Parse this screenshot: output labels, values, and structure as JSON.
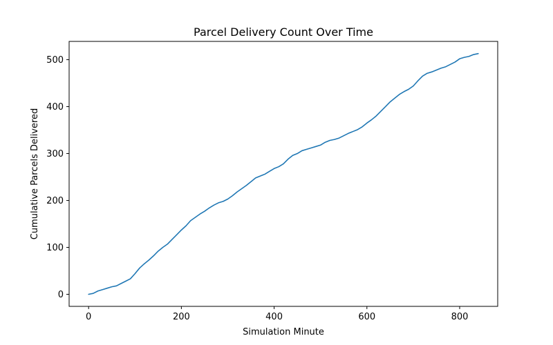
{
  "chart_data": {
    "type": "line",
    "title": "Parcel Delivery Count Over Time",
    "xlabel": "Simulation Minute",
    "ylabel": "Cumulative Parcels Delivered",
    "xlim": [
      -42,
      882
    ],
    "ylim": [
      -25.7,
      539
    ],
    "xticks": [
      0,
      200,
      400,
      600,
      800
    ],
    "yticks": [
      0,
      100,
      200,
      300,
      400,
      500
    ],
    "grid": false,
    "line_color": "#1f77b4",
    "series": [
      {
        "points": [
          [
            0,
            0
          ],
          [
            10,
            2
          ],
          [
            20,
            7
          ],
          [
            30,
            10
          ],
          [
            40,
            13
          ],
          [
            50,
            16
          ],
          [
            60,
            18
          ],
          [
            70,
            23
          ],
          [
            80,
            28
          ],
          [
            90,
            33
          ],
          [
            100,
            44
          ],
          [
            110,
            56
          ],
          [
            120,
            65
          ],
          [
            130,
            73
          ],
          [
            140,
            82
          ],
          [
            150,
            92
          ],
          [
            160,
            100
          ],
          [
            170,
            107
          ],
          [
            180,
            117
          ],
          [
            190,
            127
          ],
          [
            200,
            137
          ],
          [
            210,
            146
          ],
          [
            220,
            157
          ],
          [
            230,
            164
          ],
          [
            240,
            171
          ],
          [
            250,
            177
          ],
          [
            260,
            184
          ],
          [
            270,
            190
          ],
          [
            280,
            195
          ],
          [
            290,
            198
          ],
          [
            300,
            203
          ],
          [
            310,
            210
          ],
          [
            320,
            218
          ],
          [
            330,
            225
          ],
          [
            340,
            232
          ],
          [
            350,
            240
          ],
          [
            360,
            248
          ],
          [
            370,
            252
          ],
          [
            380,
            256
          ],
          [
            390,
            262
          ],
          [
            400,
            268
          ],
          [
            410,
            272
          ],
          [
            420,
            278
          ],
          [
            430,
            288
          ],
          [
            440,
            296
          ],
          [
            450,
            300
          ],
          [
            460,
            306
          ],
          [
            470,
            309
          ],
          [
            480,
            312
          ],
          [
            490,
            315
          ],
          [
            500,
            318
          ],
          [
            510,
            324
          ],
          [
            520,
            328
          ],
          [
            530,
            330
          ],
          [
            540,
            333
          ],
          [
            550,
            338
          ],
          [
            560,
            343
          ],
          [
            570,
            347
          ],
          [
            580,
            351
          ],
          [
            590,
            357
          ],
          [
            600,
            365
          ],
          [
            610,
            372
          ],
          [
            620,
            380
          ],
          [
            630,
            390
          ],
          [
            640,
            400
          ],
          [
            650,
            410
          ],
          [
            660,
            418
          ],
          [
            670,
            426
          ],
          [
            680,
            432
          ],
          [
            690,
            437
          ],
          [
            700,
            444
          ],
          [
            710,
            455
          ],
          [
            720,
            465
          ],
          [
            730,
            471
          ],
          [
            740,
            474
          ],
          [
            750,
            478
          ],
          [
            760,
            482
          ],
          [
            770,
            485
          ],
          [
            780,
            490
          ],
          [
            790,
            495
          ],
          [
            800,
            502
          ],
          [
            810,
            505
          ],
          [
            820,
            507
          ],
          [
            830,
            511
          ],
          [
            840,
            513
          ]
        ]
      }
    ]
  }
}
